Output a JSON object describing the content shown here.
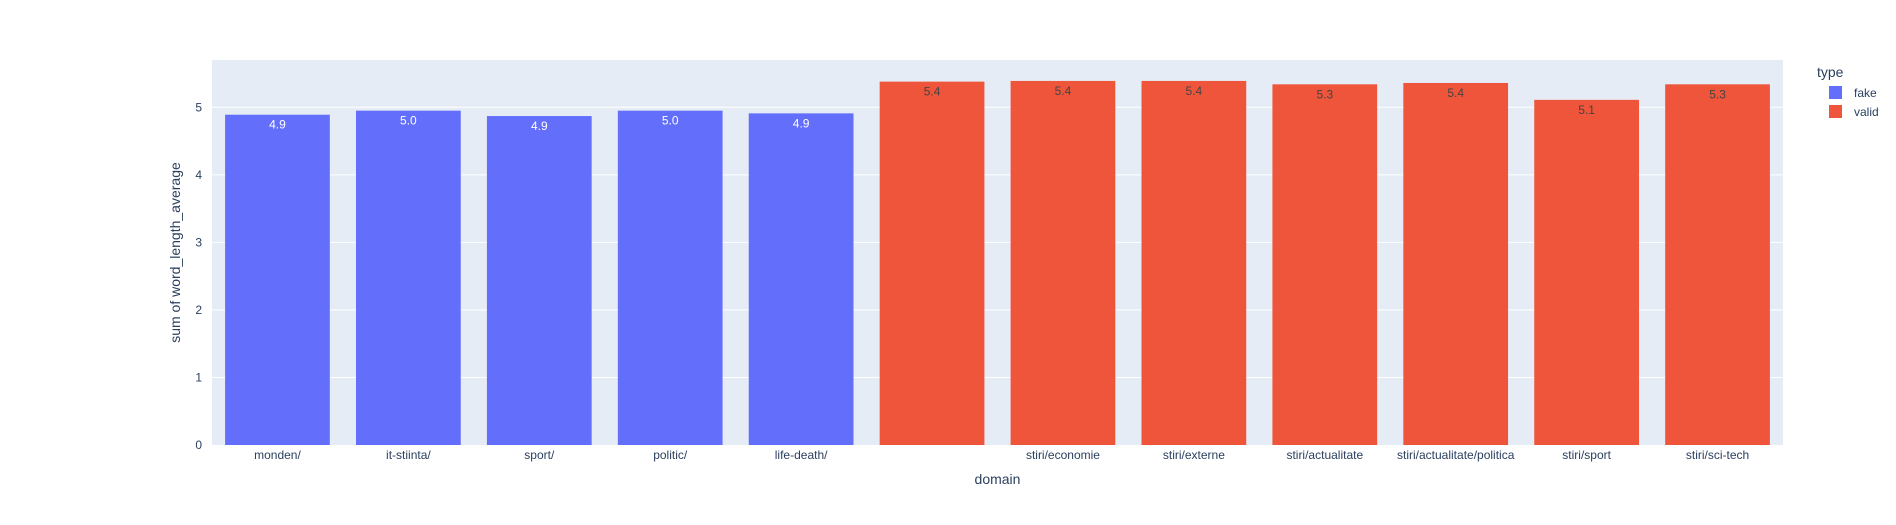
{
  "chart_data": {
    "type": "bar",
    "xlabel": "domain",
    "ylabel": "sum of word_length_average",
    "ylim": [
      0,
      5.7
    ],
    "yticks": [
      0,
      1,
      2,
      3,
      4,
      5
    ],
    "grid": true,
    "legend": {
      "title": "type",
      "placement": "top-right",
      "entries": [
        {
          "name": "fake",
          "color": "#636efa"
        },
        {
          "name": "valid",
          "color": "#ef553b"
        }
      ]
    },
    "colors": {
      "plot_bg": "#e5ecf6",
      "grid": "#ffffff",
      "text": "#2a3f5f",
      "label_light": "#ffffff",
      "label_dark": "#444444"
    },
    "bars": [
      {
        "category": "monden/",
        "series": "fake",
        "value": 4.89,
        "label": "4.9"
      },
      {
        "category": "it-stiinta/",
        "series": "fake",
        "value": 4.95,
        "label": "5.0"
      },
      {
        "category": "sport/",
        "series": "fake",
        "value": 4.87,
        "label": "4.9"
      },
      {
        "category": "politic/",
        "series": "fake",
        "value": 4.95,
        "label": "5.0"
      },
      {
        "category": "life-death/",
        "series": "fake",
        "value": 4.91,
        "label": "4.9"
      },
      {
        "category": "",
        "series": "valid",
        "value": 5.38,
        "label": "5.4"
      },
      {
        "category": "stiri/economie",
        "series": "valid",
        "value": 5.39,
        "label": "5.4"
      },
      {
        "category": "stiri/externe",
        "series": "valid",
        "value": 5.39,
        "label": "5.4"
      },
      {
        "category": "stiri/actualitate",
        "series": "valid",
        "value": 5.34,
        "label": "5.3"
      },
      {
        "category": "stiri/actualitate/politica",
        "series": "valid",
        "value": 5.36,
        "label": "5.4"
      },
      {
        "category": "stiri/sport",
        "series": "valid",
        "value": 5.11,
        "label": "5.1"
      },
      {
        "category": "stiri/sci-tech",
        "series": "valid",
        "value": 5.34,
        "label": "5.3"
      }
    ]
  }
}
